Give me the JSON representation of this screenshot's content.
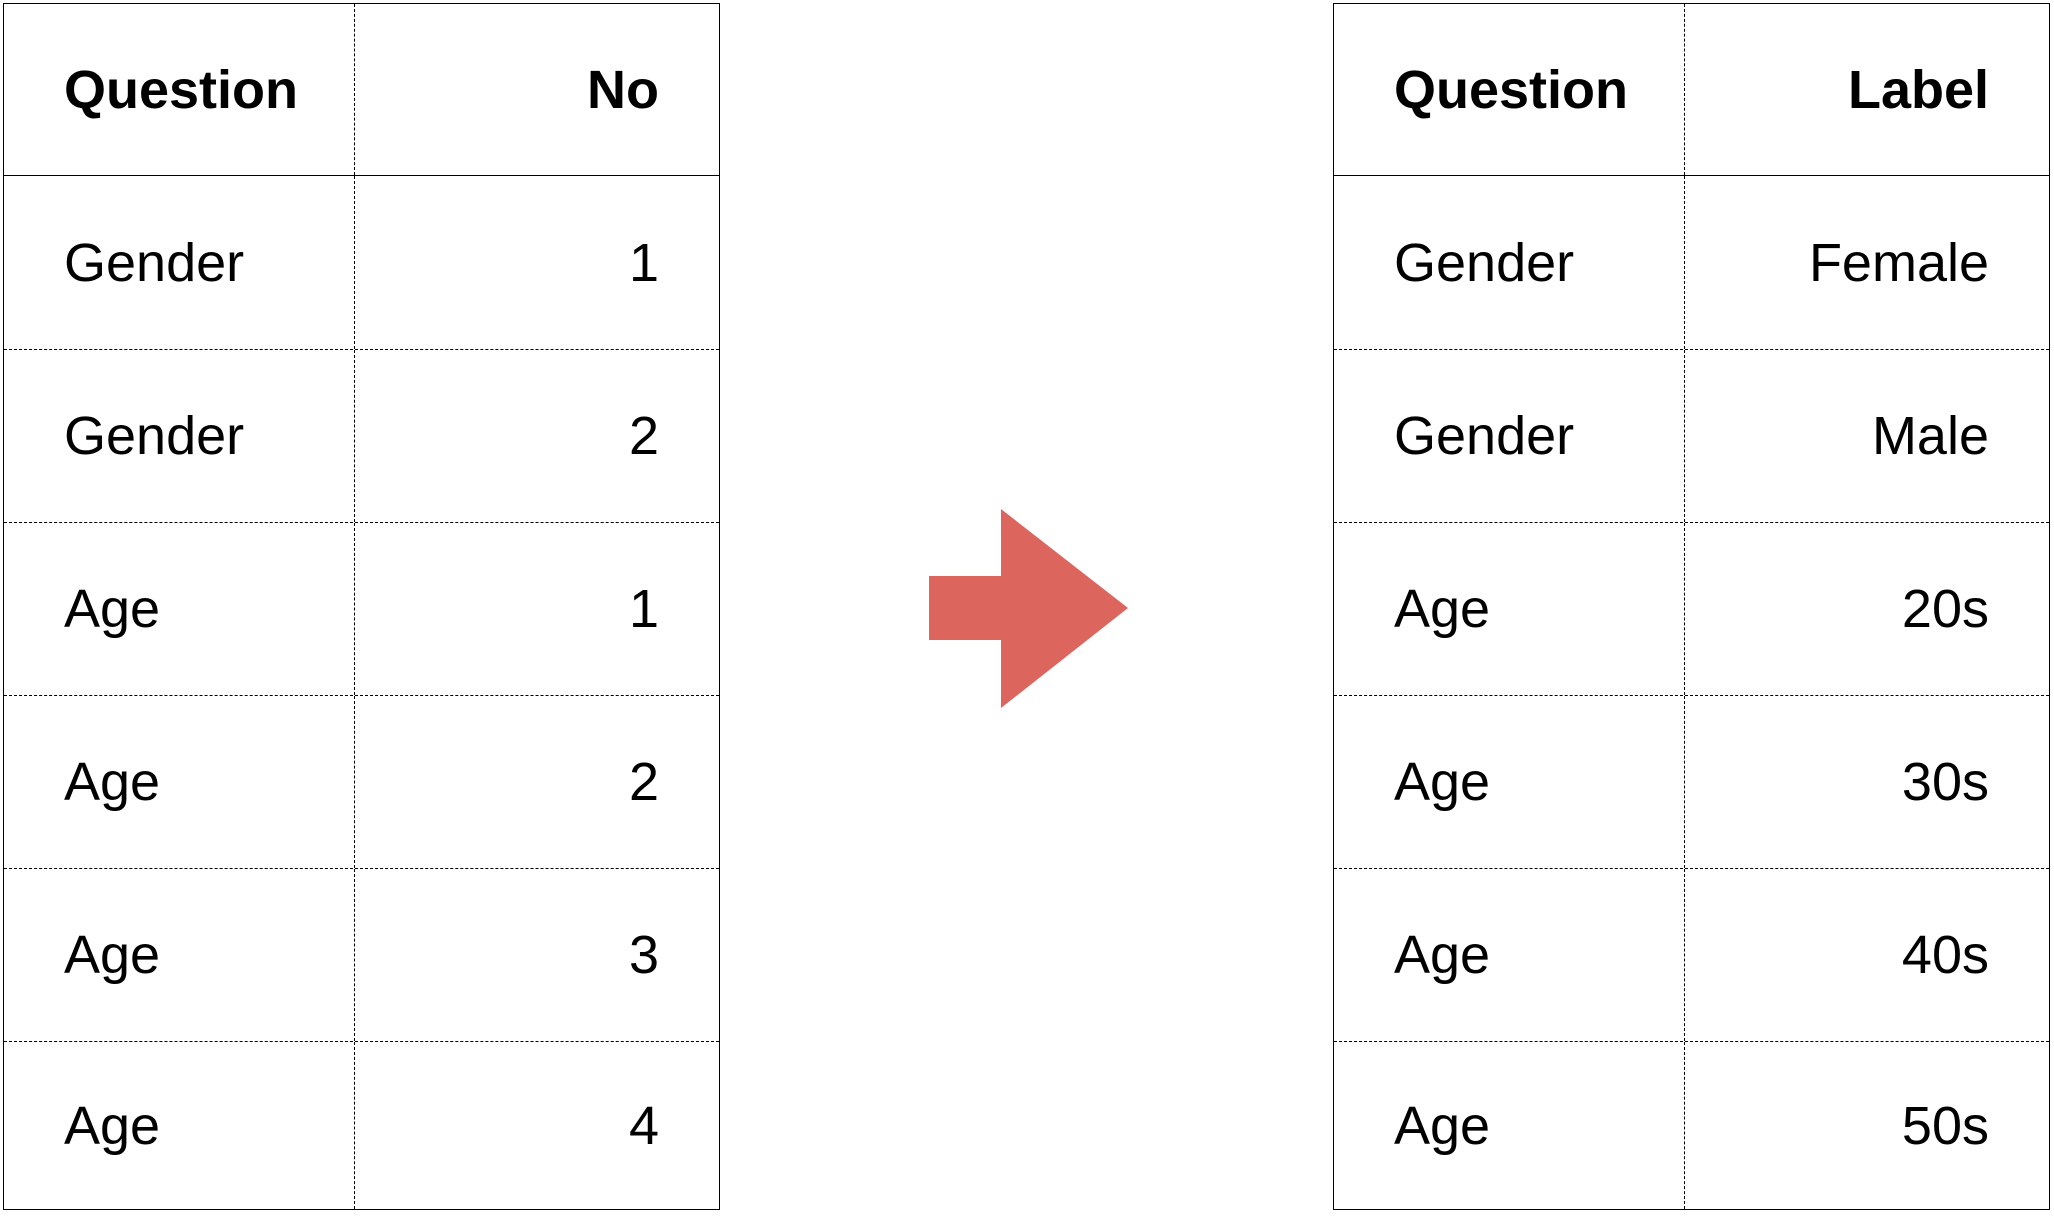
{
  "left_table": {
    "headers": [
      "Question",
      "No"
    ],
    "rows": [
      [
        "Gender",
        "1"
      ],
      [
        "Gender",
        "2"
      ],
      [
        "Age",
        "1"
      ],
      [
        "Age",
        "2"
      ],
      [
        "Age",
        "3"
      ],
      [
        "Age",
        "4"
      ]
    ]
  },
  "arrow": {
    "icon": "right-arrow-icon",
    "color": "#dc665e"
  },
  "right_table": {
    "headers": [
      "Question",
      "Label"
    ],
    "rows": [
      [
        "Gender",
        "Female"
      ],
      [
        "Gender",
        "Male"
      ],
      [
        "Age",
        "20s"
      ],
      [
        "Age",
        "30s"
      ],
      [
        "Age",
        "40s"
      ],
      [
        "Age",
        "50s"
      ]
    ]
  }
}
